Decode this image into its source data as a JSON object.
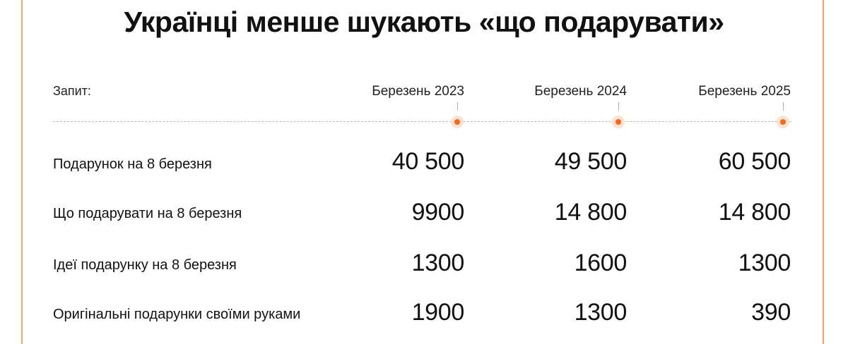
{
  "chart_data": {
    "type": "table",
    "title": "Українці менше шукають «що подарувати»",
    "query_label": "Запит:",
    "columns": [
      "Березень 2023",
      "Березень 2024",
      "Березень 2025"
    ],
    "rows": [
      {
        "label": "Подарунок на 8 березня",
        "values": [
          "40 500",
          "49 500",
          "60 500"
        ]
      },
      {
        "label": "Що подарувати на 8 березня",
        "values": [
          "9900",
          "14 800",
          "14 800"
        ]
      },
      {
        "label": "Ідеї подарунку на 8 березня",
        "values": [
          "1300",
          "1600",
          "1300"
        ]
      },
      {
        "label": "Оригінальні подарунки своїми руками",
        "values": [
          "1900",
          "1300",
          "390"
        ]
      }
    ]
  },
  "colors": {
    "accent": "#f26a21",
    "accent_halo": "#fde2cf",
    "frame": "#f0a468"
  }
}
